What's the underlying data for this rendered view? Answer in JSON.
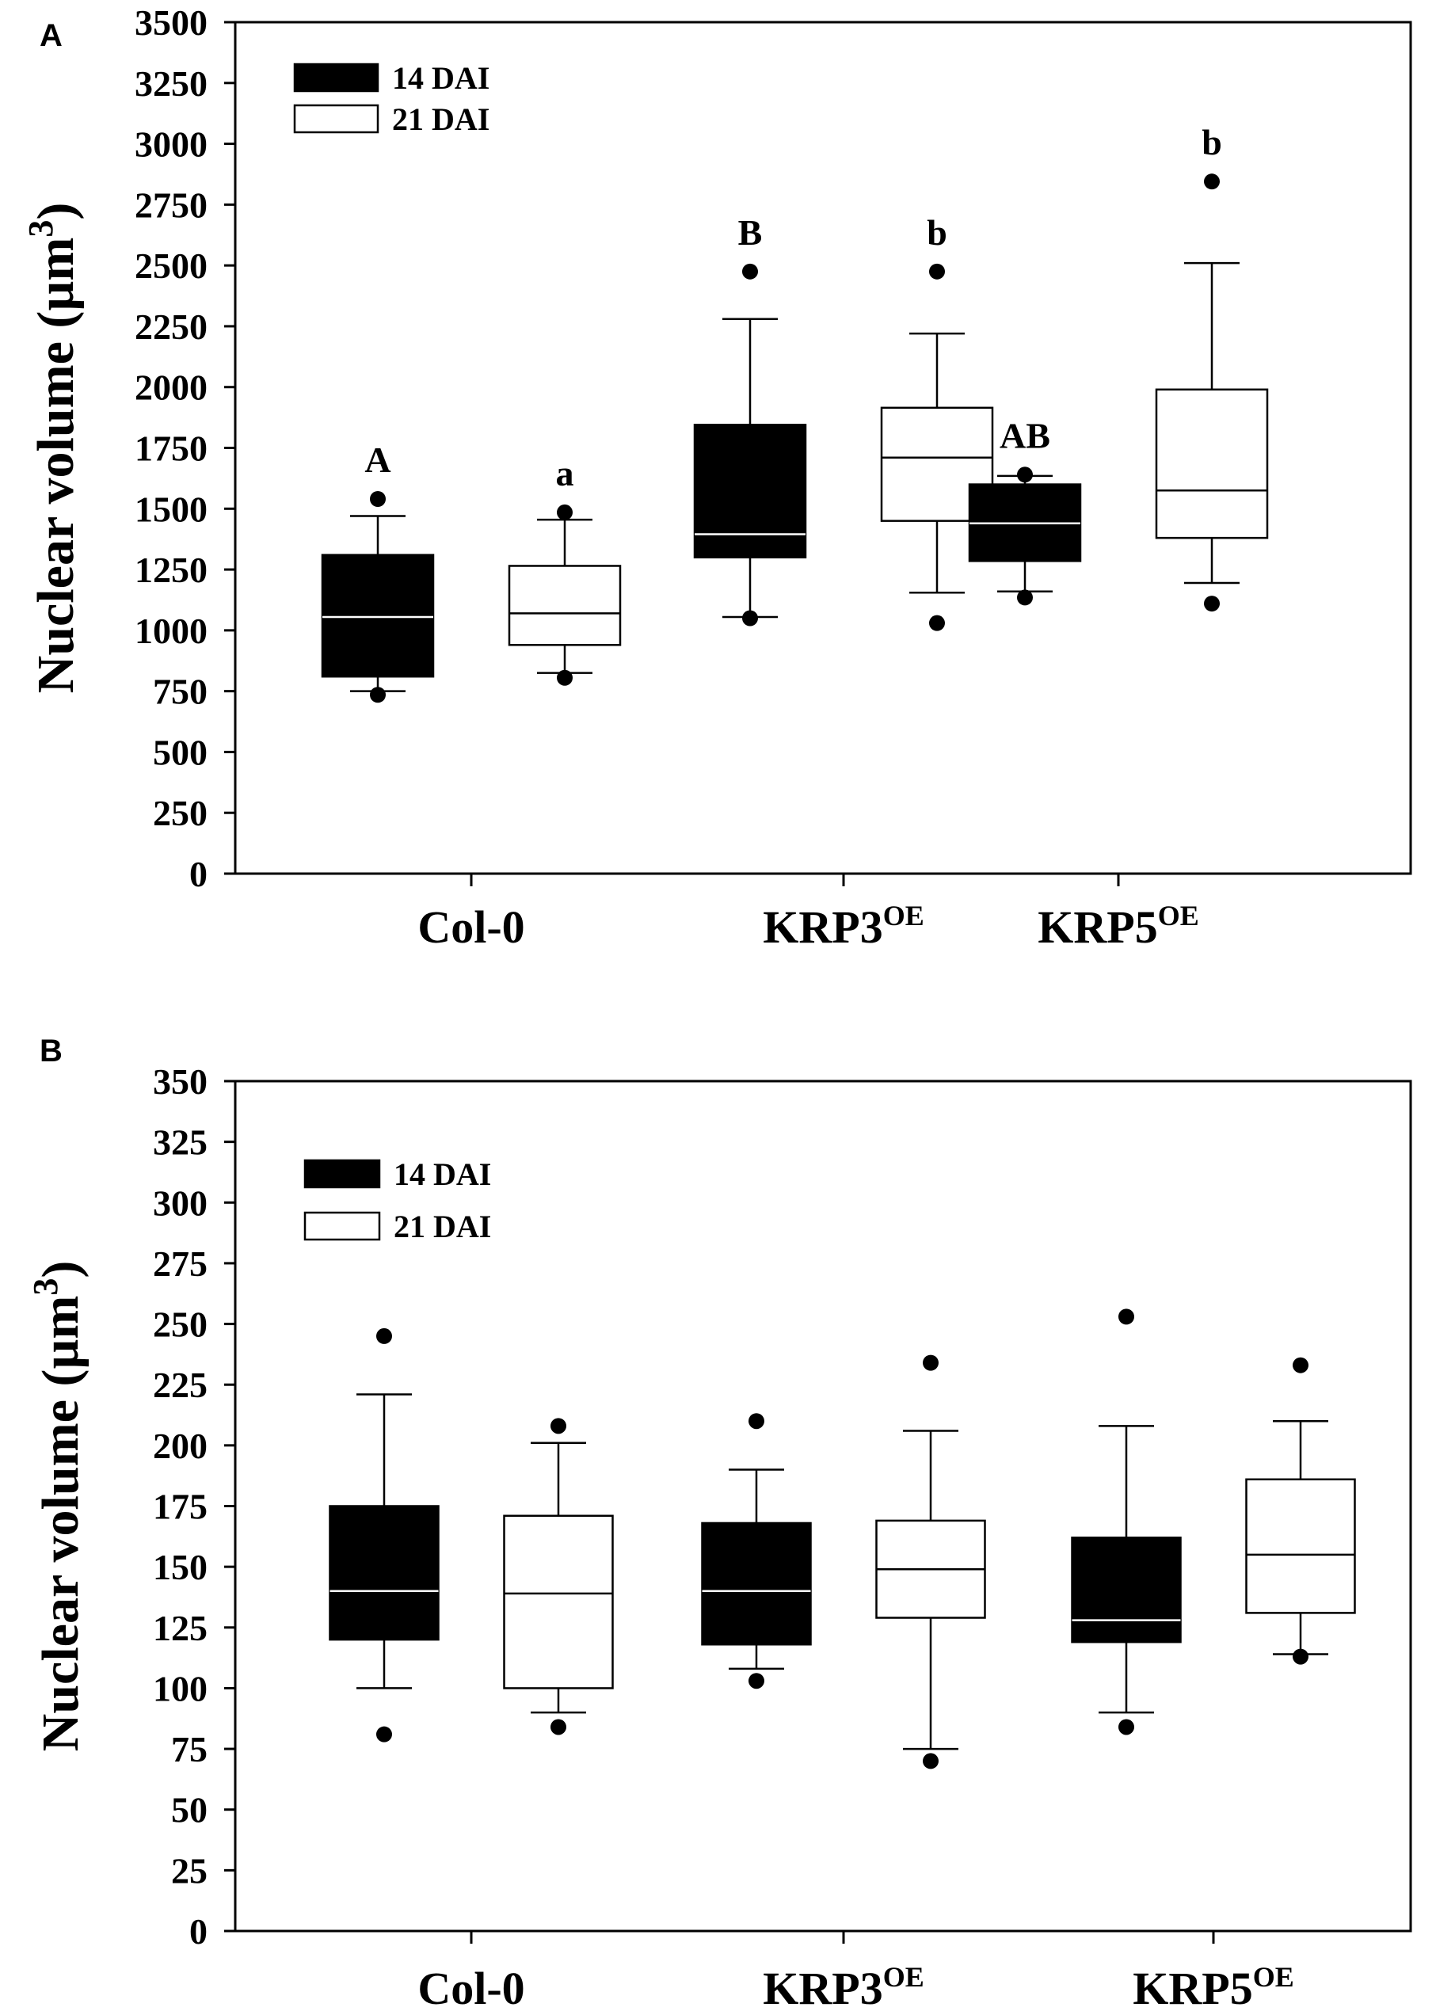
{
  "chart_data": [
    {
      "type": "box",
      "panel_label": "A",
      "ylabel": "Nuclear volume (µm",
      "ylabel_sup": "3",
      "ylabel_close": ")",
      "ylim": [
        0,
        3500
      ],
      "yticks": [
        0,
        250,
        500,
        750,
        1000,
        1250,
        1500,
        1750,
        2000,
        2250,
        2500,
        2750,
        3000,
        3250,
        3500
      ],
      "categories": [
        {
          "base": "Col-0",
          "sup": ""
        },
        {
          "base": "KRP3",
          "sup": "OE"
        },
        {
          "base": "KRP5",
          "sup": "OE"
        }
      ],
      "legend": [
        {
          "label": "14 DAI",
          "fill": "#000000"
        },
        {
          "label": "21 DAI",
          "fill": "#ffffff"
        }
      ],
      "boxes": [
        {
          "category": "Col-0",
          "series": "14 DAI",
          "whisker_low": 750,
          "q1": 810,
          "median": 1055,
          "q3": 1310,
          "whisker_high": 1470,
          "outliers": [
            735,
            1540
          ],
          "letter": "A"
        },
        {
          "category": "Col-0",
          "series": "21 DAI",
          "whisker_low": 825,
          "q1": 940,
          "median": 1070,
          "q3": 1265,
          "whisker_high": 1455,
          "outliers": [
            805,
            1485
          ],
          "letter": "a"
        },
        {
          "category": "KRP3OE",
          "series": "14 DAI",
          "whisker_low": 1055,
          "q1": 1300,
          "median": 1395,
          "q3": 1845,
          "whisker_high": 2280,
          "outliers": [
            1050,
            2475
          ],
          "letter": "B"
        },
        {
          "category": "KRP3OE",
          "series": "21 DAI",
          "whisker_low": 1155,
          "q1": 1450,
          "median": 1710,
          "q3": 1915,
          "whisker_high": 2220,
          "outliers": [
            1030,
            2475
          ],
          "letter": "b"
        },
        {
          "category": "KRP5OE",
          "series": "14 DAI",
          "whisker_low": 1160,
          "q1": 1285,
          "median": 1440,
          "q3": 1600,
          "whisker_high": 1635,
          "outliers": [
            1135,
            1640
          ],
          "letter": "AB"
        },
        {
          "category": "KRP5OE",
          "series": "21 DAI",
          "whisker_low": 1195,
          "q1": 1380,
          "median": 1575,
          "q3": 1990,
          "whisker_high": 2510,
          "outliers": [
            1110,
            2845
          ],
          "letter": "b"
        }
      ]
    },
    {
      "type": "box",
      "panel_label": "B",
      "ylabel": "Nuclear volume (µm",
      "ylabel_sup": "3",
      "ylabel_close": ")",
      "ylim": [
        0,
        350
      ],
      "yticks": [
        0,
        25,
        50,
        75,
        100,
        125,
        150,
        175,
        200,
        225,
        250,
        275,
        300,
        325,
        350
      ],
      "categories": [
        {
          "base": "Col-0",
          "sup": ""
        },
        {
          "base": "KRP3",
          "sup": "OE"
        },
        {
          "base": "KRP5",
          "sup": "OE"
        }
      ],
      "legend": [
        {
          "label": "14 DAI",
          "fill": "#000000"
        },
        {
          "label": "21 DAI",
          "fill": "#ffffff"
        }
      ],
      "boxes": [
        {
          "category": "Col-0",
          "series": "14 DAI",
          "whisker_low": 100,
          "q1": 120,
          "median": 140,
          "q3": 175,
          "whisker_high": 221,
          "outliers": [
            81,
            245
          ],
          "letter": ""
        },
        {
          "category": "Col-0",
          "series": "21 DAI",
          "whisker_low": 90,
          "q1": 100,
          "median": 139,
          "q3": 171,
          "whisker_high": 201,
          "outliers": [
            84,
            208
          ],
          "letter": ""
        },
        {
          "category": "KRP3OE",
          "series": "14 DAI",
          "whisker_low": 108,
          "q1": 118,
          "median": 140,
          "q3": 168,
          "whisker_high": 190,
          "outliers": [
            103,
            210
          ],
          "letter": ""
        },
        {
          "category": "KRP3OE",
          "series": "21 DAI",
          "whisker_low": 75,
          "q1": 129,
          "median": 149,
          "q3": 169,
          "whisker_high": 206,
          "outliers": [
            70,
            234
          ],
          "letter": ""
        },
        {
          "category": "KRP5OE",
          "series": "14 DAI",
          "whisker_low": 90,
          "q1": 119,
          "median": 128,
          "q3": 162,
          "whisker_high": 208,
          "outliers": [
            84,
            253
          ],
          "letter": ""
        },
        {
          "category": "KRP5OE",
          "series": "21 DAI",
          "whisker_low": 114,
          "q1": 131,
          "median": 155,
          "q3": 186,
          "whisker_high": 210,
          "outliers": [
            113,
            233
          ],
          "letter": ""
        }
      ]
    }
  ]
}
